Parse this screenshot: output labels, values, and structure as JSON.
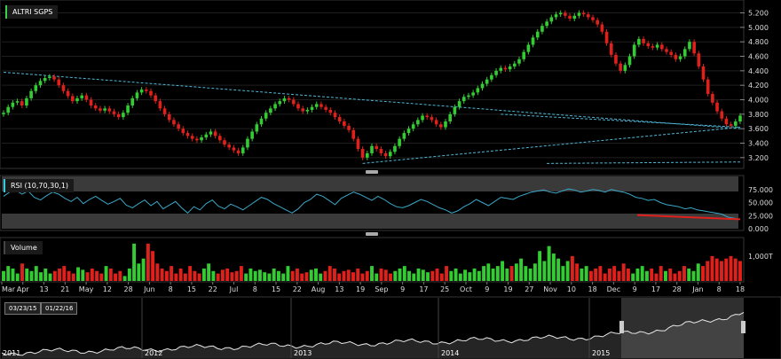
{
  "symbol": "ALTRI SGPS",
  "colors": {
    "up": "#33cc33",
    "down": "#e0201b",
    "trend": "#4fb8d8",
    "rsi_line": "#3aa8c8",
    "rsi_trend": "#e0201b",
    "panel_bg": "#000000",
    "band": "#3a3a3a",
    "grid": "#1f1f1f"
  },
  "price_panel": {
    "y_ticks": [
      "5.200",
      "5.000",
      "4.800",
      "4.600",
      "4.400",
      "4.200",
      "4.000",
      "3.800",
      "3.600",
      "3.400",
      "3.200"
    ],
    "y_min": 3.1,
    "y_max": 5.28
  },
  "rsi_panel": {
    "title": "RSI (10,70,30,1)",
    "y_ticks": [
      "75.000",
      "50.000",
      "25.000",
      "0.000"
    ]
  },
  "volume_panel": {
    "title": "Volume",
    "y_tick": "1,000T"
  },
  "x_axis": {
    "labels": [
      "Mar",
      "Apr",
      "13",
      "21",
      "May",
      "12",
      "28",
      "Jun",
      "8",
      "15",
      "22",
      "Jul",
      "8",
      "15",
      "22",
      "Aug",
      "13",
      "19",
      "Sep",
      "9",
      "17",
      "25",
      "Oct",
      "9",
      "19",
      "27",
      "Nov",
      "10",
      "18",
      "Dec",
      "9",
      "17",
      "28",
      "Jan",
      "8",
      "18"
    ]
  },
  "navigator": {
    "start_date": "03/23/15",
    "end_date": "01/22/16",
    "year_labels": [
      "2011",
      "2012",
      "2013",
      "2014",
      "2015"
    ]
  },
  "chart_data": [
    {
      "type": "candlestick",
      "title": "ALTRI SGPS",
      "x_range": [
        "Mar 2015",
        "Jan 2016"
      ],
      "ylim": [
        3.1,
        5.28
      ],
      "close_series": [
        3.82,
        3.9,
        3.96,
        3.98,
        3.92,
        4.02,
        4.12,
        4.2,
        4.26,
        4.3,
        4.32,
        4.28,
        4.2,
        4.12,
        4.05,
        3.98,
        4.02,
        4.06,
        4.0,
        3.92,
        3.88,
        3.85,
        3.88,
        3.84,
        3.8,
        3.76,
        3.82,
        3.92,
        4.02,
        4.1,
        4.14,
        4.12,
        4.06,
        3.98,
        3.88,
        3.8,
        3.72,
        3.66,
        3.6,
        3.54,
        3.5,
        3.46,
        3.44,
        3.48,
        3.52,
        3.56,
        3.5,
        3.44,
        3.38,
        3.34,
        3.3,
        3.26,
        3.34,
        3.46,
        3.56,
        3.66,
        3.74,
        3.82,
        3.88,
        3.94,
        3.98,
        4.02,
        4.0,
        3.94,
        3.88,
        3.84,
        3.86,
        3.9,
        3.94,
        3.9,
        3.86,
        3.82,
        3.76,
        3.7,
        3.64,
        3.58,
        3.46,
        3.32,
        3.2,
        3.26,
        3.36,
        3.32,
        3.26,
        3.22,
        3.28,
        3.36,
        3.46,
        3.54,
        3.6,
        3.66,
        3.72,
        3.78,
        3.76,
        3.72,
        3.66,
        3.62,
        3.7,
        3.8,
        3.9,
        3.98,
        4.04,
        4.06,
        4.1,
        4.16,
        4.22,
        4.28,
        4.34,
        4.4,
        4.44,
        4.42,
        4.46,
        4.5,
        4.56,
        4.66,
        4.76,
        4.86,
        4.94,
        5.02,
        5.08,
        5.14,
        5.18,
        5.2,
        5.16,
        5.12,
        5.16,
        5.2,
        5.18,
        5.14,
        5.1,
        5.04,
        4.94,
        4.78,
        4.62,
        4.5,
        4.4,
        4.48,
        4.6,
        4.76,
        4.84,
        4.78,
        4.74,
        4.72,
        4.76,
        4.7,
        4.66,
        4.62,
        4.56,
        4.6,
        4.7,
        4.8,
        4.64,
        4.46,
        4.28,
        4.08,
        3.96,
        3.84,
        3.74,
        3.66,
        3.64,
        3.7,
        3.78
      ],
      "volume_series": [
        0.4,
        0.6,
        0.5,
        0.3,
        0.7,
        0.5,
        0.4,
        0.6,
        0.35,
        0.5,
        0.3,
        0.4,
        0.5,
        0.6,
        0.4,
        0.3,
        0.55,
        0.45,
        0.35,
        0.5,
        0.4,
        0.3,
        0.6,
        0.5,
        0.3,
        0.4,
        0.2,
        0.5,
        1.5,
        0.7,
        0.9,
        1.5,
        1.2,
        0.7,
        0.5,
        0.4,
        0.6,
        0.3,
        0.5,
        0.3,
        0.6,
        0.4,
        0.3,
        0.5,
        0.7,
        0.4,
        0.3,
        0.45,
        0.5,
        0.35,
        0.4,
        0.6,
        0.3,
        0.5,
        0.4,
        0.45,
        0.35,
        0.3,
        0.5,
        0.4,
        0.3,
        0.6,
        0.4,
        0.5,
        0.3,
        0.35,
        0.45,
        0.5,
        0.3,
        0.4,
        0.6,
        0.5,
        0.3,
        0.4,
        0.45,
        0.35,
        0.5,
        0.3,
        0.4,
        0.6,
        0.3,
        0.5,
        0.45,
        0.3,
        0.4,
        0.5,
        0.6,
        0.4,
        0.3,
        0.5,
        0.45,
        0.35,
        0.4,
        0.5,
        0.3,
        0.6,
        0.4,
        0.5,
        0.3,
        0.45,
        0.35,
        0.5,
        0.4,
        0.6,
        0.7,
        0.5,
        0.6,
        0.8,
        0.5,
        0.6,
        0.7,
        0.9,
        0.6,
        0.5,
        0.7,
        1.2,
        0.8,
        1.4,
        1.1,
        0.9,
        0.6,
        0.8,
        1.0,
        0.7,
        0.5,
        0.6,
        0.4,
        0.5,
        0.6,
        0.3,
        0.5,
        0.6,
        0.4,
        0.7,
        0.5,
        0.3,
        0.5,
        0.6,
        0.4,
        0.5,
        0.3,
        0.6,
        0.4,
        0.5,
        0.3,
        0.4,
        0.6,
        0.5,
        0.4,
        0.7,
        0.6,
        0.8,
        1.0,
        0.9,
        0.8,
        0.9,
        1.0,
        0.9,
        0.8
      ],
      "trendlines": [
        {
          "from": [
            "Mar 2015",
            4.38
          ],
          "to": [
            "Jan 2016",
            3.6
          ]
        },
        {
          "from": [
            "Sep 2015",
            3.12
          ],
          "to": [
            "Jan 2016",
            3.62
          ]
        },
        {
          "from": [
            "Nov 2015",
            3.8
          ],
          "to": [
            "Jan 2016",
            3.62
          ]
        },
        {
          "from": [
            "Dec 2015",
            3.12
          ],
          "to": [
            "Jan 2016",
            3.14
          ]
        }
      ]
    },
    {
      "type": "line",
      "title": "RSI (10,70,30,1)",
      "ylim": [
        0,
        100
      ],
      "values": [
        62,
        70,
        74,
        66,
        72,
        60,
        55,
        63,
        70,
        66,
        58,
        52,
        60,
        48,
        56,
        62,
        54,
        47,
        52,
        58,
        45,
        40,
        48,
        55,
        44,
        52,
        38,
        45,
        52,
        40,
        30,
        42,
        36,
        48,
        55,
        43,
        38,
        47,
        42,
        36,
        44,
        52,
        60,
        56,
        48,
        42,
        36,
        30,
        38,
        50,
        56,
        66,
        62,
        54,
        46,
        58,
        64,
        70,
        66,
        60,
        54,
        62,
        56,
        48,
        42,
        40,
        44,
        50,
        56,
        52,
        46,
        40,
        36,
        30,
        34,
        42,
        48,
        56,
        50,
        44,
        52,
        60,
        58,
        56,
        62,
        66,
        70,
        72,
        74,
        70,
        68,
        72,
        76,
        74,
        70,
        72,
        75,
        73,
        70,
        75,
        72,
        70,
        66,
        60,
        58,
        54,
        56,
        50,
        46,
        44,
        42,
        38,
        40,
        36,
        34,
        32,
        30,
        28,
        22,
        20,
        18
      ]
    }
  ]
}
